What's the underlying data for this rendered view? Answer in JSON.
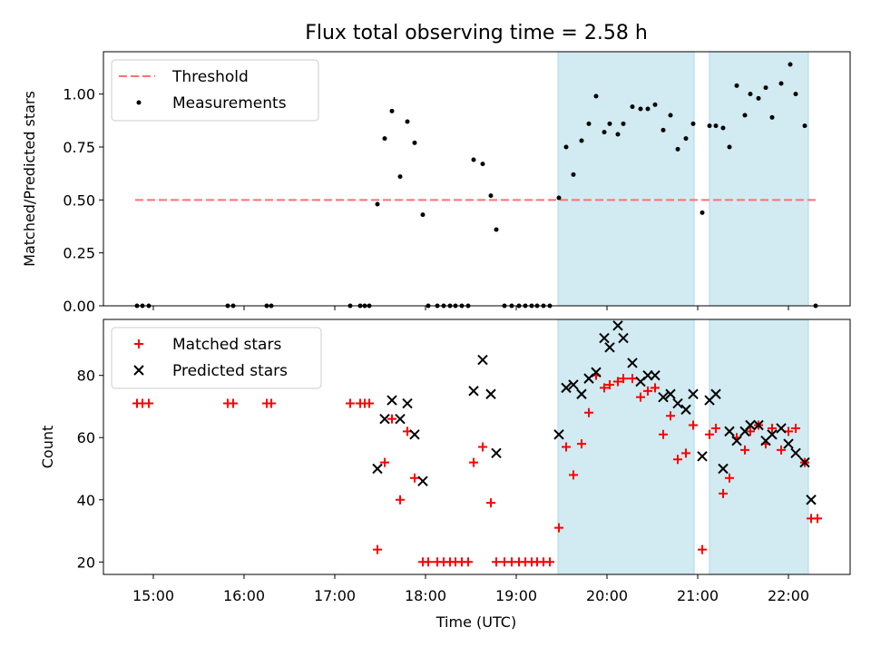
{
  "chart_data": {
    "title": "Flux total observing time = 2.58 h",
    "xlabel": "Time (UTC)",
    "xlim": [
      14.45,
      22.68
    ],
    "xticks": [
      {
        "v": 15,
        "label": "15:00"
      },
      {
        "v": 16,
        "label": "16:00"
      },
      {
        "v": 17,
        "label": "17:00"
      },
      {
        "v": 18,
        "label": "18:00"
      },
      {
        "v": 19,
        "label": "19:00"
      },
      {
        "v": 20,
        "label": "20:00"
      },
      {
        "v": 21,
        "label": "21:00"
      },
      {
        "v": 22,
        "label": "22:00"
      }
    ],
    "shaded_intervals": [
      [
        19.46,
        20.96
      ],
      [
        21.13,
        22.22
      ]
    ],
    "shade_color": "#add8e6",
    "panels": [
      {
        "type": "scatter",
        "ylabel": "Matched/Predicted stars",
        "ylim": [
          0,
          1.2
        ],
        "yticks": [
          0.0,
          0.25,
          0.5,
          0.75,
          1.0
        ],
        "ytick_labels": [
          "0.00",
          "0.25",
          "0.50",
          "0.75",
          "1.00"
        ],
        "legend": {
          "placement": "upper-left",
          "entries": [
            "Threshold",
            "Measurements"
          ]
        },
        "threshold": {
          "name": "Threshold",
          "value": 0.5,
          "x_range": [
            14.8,
            22.3
          ],
          "color": "#ff7070",
          "style": "dashed"
        },
        "series": [
          {
            "name": "Measurements",
            "color": "#000000",
            "marker": "dot",
            "points": [
              [
                14.82,
                0
              ],
              [
                14.88,
                0
              ],
              [
                14.95,
                0
              ],
              [
                15.82,
                0
              ],
              [
                15.88,
                0
              ],
              [
                16.25,
                0
              ],
              [
                16.3,
                0
              ],
              [
                17.17,
                0
              ],
              [
                17.28,
                0
              ],
              [
                17.33,
                0
              ],
              [
                17.38,
                0
              ],
              [
                17.47,
                0.48
              ],
              [
                17.55,
                0.79
              ],
              [
                17.63,
                0.92
              ],
              [
                17.72,
                0.61
              ],
              [
                17.8,
                0.87
              ],
              [
                17.88,
                0.77
              ],
              [
                17.97,
                0.43
              ],
              [
                18.03,
                0
              ],
              [
                18.13,
                0
              ],
              [
                18.2,
                0
              ],
              [
                18.27,
                0
              ],
              [
                18.33,
                0
              ],
              [
                18.4,
                0
              ],
              [
                18.47,
                0
              ],
              [
                18.53,
                0.69
              ],
              [
                18.63,
                0.67
              ],
              [
                18.72,
                0.52
              ],
              [
                18.78,
                0.36
              ],
              [
                18.87,
                0
              ],
              [
                18.95,
                0
              ],
              [
                19.03,
                0
              ],
              [
                19.1,
                0
              ],
              [
                19.17,
                0
              ],
              [
                19.23,
                0
              ],
              [
                19.3,
                0
              ],
              [
                19.37,
                0
              ],
              [
                19.47,
                0.51
              ],
              [
                19.55,
                0.75
              ],
              [
                19.63,
                0.62
              ],
              [
                19.72,
                0.78
              ],
              [
                19.8,
                0.86
              ],
              [
                19.88,
                0.99
              ],
              [
                19.97,
                0.82
              ],
              [
                20.03,
                0.86
              ],
              [
                20.12,
                0.81
              ],
              [
                20.18,
                0.86
              ],
              [
                20.28,
                0.94
              ],
              [
                20.37,
                0.93
              ],
              [
                20.45,
                0.93
              ],
              [
                20.53,
                0.95
              ],
              [
                20.62,
                0.83
              ],
              [
                20.7,
                0.9
              ],
              [
                20.78,
                0.74
              ],
              [
                20.87,
                0.79
              ],
              [
                20.95,
                0.86
              ],
              [
                21.05,
                0.44
              ],
              [
                21.13,
                0.85
              ],
              [
                21.2,
                0.85
              ],
              [
                21.28,
                0.84
              ],
              [
                21.35,
                0.75
              ],
              [
                21.43,
                1.04
              ],
              [
                21.52,
                0.9
              ],
              [
                21.58,
                1.0
              ],
              [
                21.67,
                0.98
              ],
              [
                21.75,
                1.03
              ],
              [
                21.82,
                0.89
              ],
              [
                21.92,
                1.05
              ],
              [
                22.02,
                1.14
              ],
              [
                22.08,
                1.0
              ],
              [
                22.18,
                0.85
              ],
              [
                22.3,
                0
              ]
            ]
          }
        ]
      },
      {
        "type": "scatter",
        "ylabel": "Count",
        "ylim": [
          16,
          98
        ],
        "yticks": [
          20,
          40,
          60,
          80
        ],
        "ytick_labels": [
          "20",
          "40",
          "60",
          "80"
        ],
        "legend": {
          "placement": "upper-left",
          "entries": [
            "Matched stars",
            "Predicted stars"
          ]
        },
        "series": [
          {
            "name": "Matched stars",
            "color": "#ff0000",
            "marker": "plus",
            "points": [
              [
                14.82,
                71
              ],
              [
                14.88,
                71
              ],
              [
                14.95,
                71
              ],
              [
                15.82,
                71
              ],
              [
                15.88,
                71
              ],
              [
                16.25,
                71
              ],
              [
                16.3,
                71
              ],
              [
                17.17,
                71
              ],
              [
                17.28,
                71
              ],
              [
                17.33,
                71
              ],
              [
                17.38,
                71
              ],
              [
                17.47,
                24
              ],
              [
                17.55,
                52
              ],
              [
                17.63,
                66
              ],
              [
                17.72,
                40
              ],
              [
                17.8,
                62
              ],
              [
                17.88,
                47
              ],
              [
                17.97,
                20
              ],
              [
                18.03,
                20
              ],
              [
                18.13,
                20
              ],
              [
                18.2,
                20
              ],
              [
                18.27,
                20
              ],
              [
                18.33,
                20
              ],
              [
                18.4,
                20
              ],
              [
                18.47,
                20
              ],
              [
                18.53,
                52
              ],
              [
                18.63,
                57
              ],
              [
                18.72,
                39
              ],
              [
                18.78,
                20
              ],
              [
                18.87,
                20
              ],
              [
                18.95,
                20
              ],
              [
                19.03,
                20
              ],
              [
                19.1,
                20
              ],
              [
                19.17,
                20
              ],
              [
                19.23,
                20
              ],
              [
                19.3,
                20
              ],
              [
                19.37,
                20
              ],
              [
                19.47,
                31
              ],
              [
                19.55,
                57
              ],
              [
                19.63,
                48
              ],
              [
                19.72,
                58
              ],
              [
                19.8,
                68
              ],
              [
                19.88,
                80
              ],
              [
                19.97,
                76
              ],
              [
                20.03,
                77
              ],
              [
                20.12,
                78
              ],
              [
                20.18,
                79
              ],
              [
                20.28,
                79
              ],
              [
                20.37,
                73
              ],
              [
                20.45,
                75
              ],
              [
                20.53,
                76
              ],
              [
                20.62,
                61
              ],
              [
                20.7,
                67
              ],
              [
                20.78,
                53
              ],
              [
                20.87,
                55
              ],
              [
                20.95,
                64
              ],
              [
                21.05,
                24
              ],
              [
                21.13,
                61
              ],
              [
                21.2,
                63
              ],
              [
                21.28,
                42
              ],
              [
                21.35,
                47
              ],
              [
                21.43,
                60
              ],
              [
                21.52,
                56
              ],
              [
                21.58,
                62
              ],
              [
                21.67,
                64
              ],
              [
                21.75,
                58
              ],
              [
                21.82,
                63
              ],
              [
                21.92,
                56
              ],
              [
                22.0,
                62
              ],
              [
                22.08,
                63
              ],
              [
                22.18,
                52
              ],
              [
                22.25,
                34
              ],
              [
                22.32,
                34
              ]
            ]
          },
          {
            "name": "Predicted stars",
            "color": "#000000",
            "marker": "x",
            "points": [
              [
                17.47,
                50
              ],
              [
                17.55,
                66
              ],
              [
                17.63,
                72
              ],
              [
                17.72,
                66
              ],
              [
                17.8,
                71
              ],
              [
                17.88,
                61
              ],
              [
                17.97,
                46
              ],
              [
                18.53,
                75
              ],
              [
                18.63,
                85
              ],
              [
                18.72,
                74
              ],
              [
                18.78,
                55
              ],
              [
                19.47,
                61
              ],
              [
                19.55,
                76
              ],
              [
                19.63,
                77
              ],
              [
                19.72,
                74
              ],
              [
                19.8,
                79
              ],
              [
                19.88,
                81
              ],
              [
                19.97,
                92
              ],
              [
                20.03,
                89
              ],
              [
                20.12,
                96
              ],
              [
                20.18,
                92
              ],
              [
                20.28,
                84
              ],
              [
                20.37,
                78
              ],
              [
                20.45,
                80
              ],
              [
                20.53,
                80
              ],
              [
                20.62,
                73
              ],
              [
                20.7,
                74
              ],
              [
                20.78,
                71
              ],
              [
                20.87,
                69
              ],
              [
                20.95,
                74
              ],
              [
                21.05,
                54
              ],
              [
                21.13,
                72
              ],
              [
                21.2,
                74
              ],
              [
                21.28,
                50
              ],
              [
                21.35,
                62
              ],
              [
                21.43,
                59
              ],
              [
                21.52,
                62
              ],
              [
                21.58,
                64
              ],
              [
                21.67,
                64
              ],
              [
                21.75,
                59
              ],
              [
                21.82,
                61
              ],
              [
                21.92,
                63
              ],
              [
                22.0,
                58
              ],
              [
                22.08,
                55
              ],
              [
                22.18,
                52
              ],
              [
                22.25,
                40
              ]
            ]
          }
        ]
      }
    ]
  }
}
